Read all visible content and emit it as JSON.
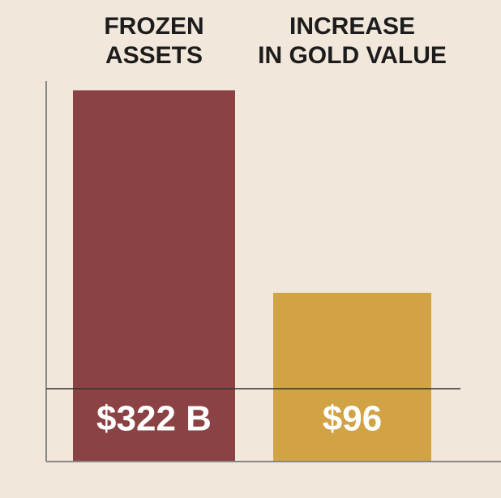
{
  "chart_data": {
    "type": "bar",
    "categories": [
      [
        "FROZEN",
        "ASSETS"
      ],
      [
        "INCREASE",
        "IN GOLD VALUE"
      ]
    ],
    "values": [
      322,
      96
    ],
    "value_labels": [
      "$322 B",
      "$96"
    ],
    "colors": [
      "#8b4244",
      "#d1a345"
    ],
    "ylim": [
      -92,
      345
    ]
  }
}
